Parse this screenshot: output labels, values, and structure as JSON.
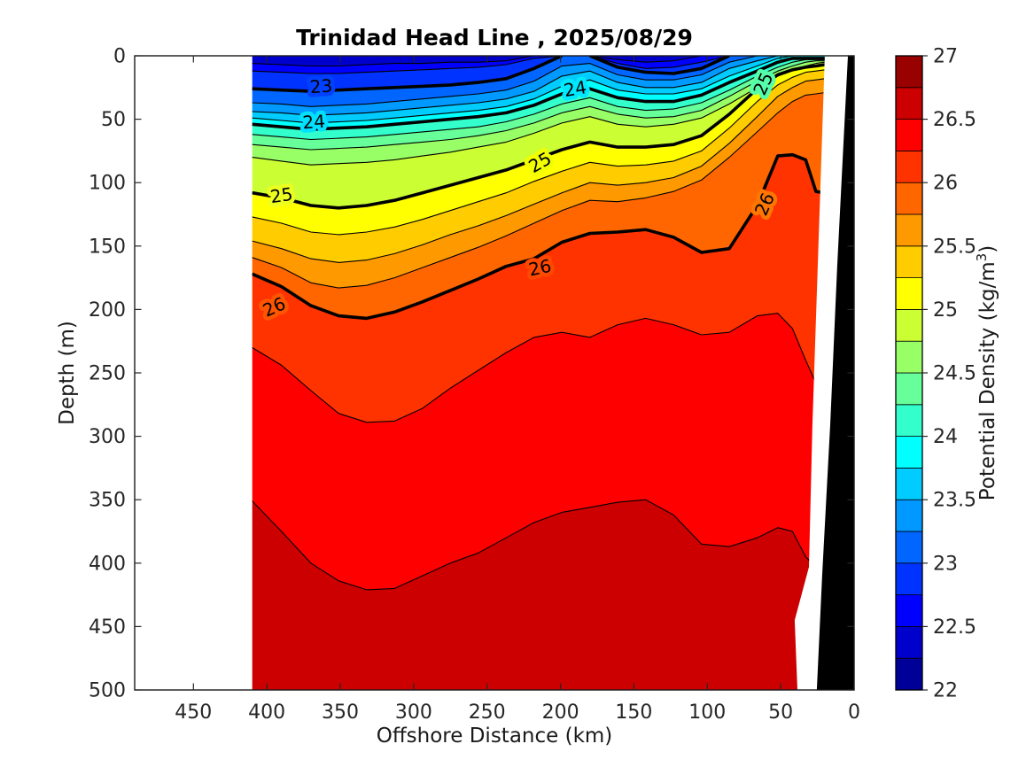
{
  "chart_data": {
    "type": "filled_contour_section",
    "title": "Trinidad Head Line , 2025/08/29",
    "x_axis": {
      "label": "Offshore Distance (km)",
      "ticks": [
        450,
        400,
        350,
        300,
        250,
        200,
        150,
        100,
        50,
        0
      ],
      "range_km": [
        490,
        0
      ],
      "direction": "reversed"
    },
    "y_axis": {
      "label": "Depth (m)",
      "ticks": [
        0,
        50,
        100,
        150,
        200,
        250,
        300,
        350,
        400,
        450,
        500
      ],
      "range_m": [
        0,
        500
      ]
    },
    "colorbar": {
      "title_parts": {
        "prefix": "Potential Density (kg/m",
        "sup": "3",
        "suffix": ")"
      },
      "min": 22,
      "max": 27,
      "block_step": 0.25,
      "ticks": [
        22,
        22.5,
        23,
        23.5,
        24,
        24.5,
        25,
        25.5,
        26,
        26.5,
        27
      ],
      "colors_bottom_to_top": [
        "#000099",
        "#0000CC",
        "#0000FF",
        "#0033FF",
        "#0066FF",
        "#0099FF",
        "#00CCFF",
        "#00FFFF",
        "#33FFCC",
        "#66FF99",
        "#99FF66",
        "#CCFF33",
        "#FFFF00",
        "#FFCC00",
        "#FF9900",
        "#FF6600",
        "#FF3300",
        "#FF0000",
        "#CC0000",
        "#990000"
      ]
    },
    "section": {
      "distance_km": [
        410,
        390,
        370,
        351,
        332,
        313,
        294,
        275,
        256,
        237,
        218,
        199,
        180,
        161,
        142,
        123,
        104,
        85,
        66,
        52,
        42,
        33,
        26,
        20
      ],
      "surface_band_color": "#0000CC",
      "band_colors": [
        "#0000CC",
        "#0000FF",
        "#0033FF",
        "#0066FF",
        "#0099FF",
        "#00CCFF",
        "#00FFFF",
        "#33FFCC",
        "#66FF99",
        "#99FF66",
        "#CCFF33",
        "#FFFF00",
        "#FFCC00",
        "#FF9900",
        "#FF6600",
        "#FF3300",
        "#FF0000",
        "#CC0000"
      ],
      "contours": [
        {
          "level": 22.5,
          "thick": false,
          "depth_m": [
            6,
            7,
            8,
            8,
            7,
            6,
            6,
            5,
            5,
            4,
            0,
            0,
            0,
            3,
            5,
            4,
            0,
            0,
            0,
            0,
            0,
            0,
            0,
            0
          ]
        },
        {
          "level": 22.75,
          "thick": false,
          "depth_m": [
            12,
            13,
            14,
            14,
            13,
            12,
            11,
            10,
            9,
            7,
            2,
            0,
            0,
            6,
            10,
            9,
            5,
            0,
            0,
            0,
            0,
            0,
            0,
            0
          ]
        },
        {
          "level": 23,
          "thick": true,
          "depth_m": [
            26,
            27,
            28,
            27,
            26,
            25,
            24,
            23,
            21,
            18,
            10,
            0,
            0,
            9,
            13,
            14,
            10,
            0,
            0,
            0,
            0,
            0,
            0,
            0
          ]
        },
        {
          "level": 23.25,
          "thick": false,
          "depth_m": [
            37,
            38,
            40,
            39,
            38,
            36,
            34,
            32,
            30,
            27,
            20,
            8,
            6,
            15,
            19,
            19,
            15,
            5,
            0,
            0,
            0,
            0,
            0,
            0
          ]
        },
        {
          "level": 23.5,
          "thick": false,
          "depth_m": [
            44,
            45,
            47,
            46,
            45,
            43,
            41,
            39,
            37,
            34,
            28,
            16,
            12,
            21,
            25,
            25,
            21,
            10,
            4,
            0,
            0,
            0,
            0,
            0
          ]
        },
        {
          "level": 23.75,
          "thick": false,
          "depth_m": [
            49,
            51,
            53,
            52,
            51,
            49,
            47,
            45,
            43,
            40,
            34,
            24,
            19,
            27,
            30,
            30,
            26,
            16,
            8,
            2,
            0,
            0,
            0,
            0
          ]
        },
        {
          "level": 24,
          "thick": true,
          "depth_m": [
            54,
            56,
            58,
            57,
            56,
            54,
            52,
            50,
            48,
            45,
            39,
            30,
            26,
            33,
            36,
            36,
            31,
            21,
            12,
            5,
            2,
            2,
            2,
            2
          ]
        },
        {
          "level": 24.25,
          "thick": false,
          "depth_m": [
            62,
            64,
            66,
            65,
            64,
            62,
            60,
            58,
            56,
            52,
            46,
            38,
            33,
            40,
            43,
            42,
            37,
            27,
            16,
            9,
            5,
            3,
            3,
            3
          ]
        },
        {
          "level": 24.5,
          "thick": false,
          "depth_m": [
            70,
            72,
            74,
            73,
            72,
            70,
            68,
            66,
            63,
            59,
            53,
            45,
            40,
            46,
            49,
            48,
            43,
            32,
            20,
            12,
            8,
            5,
            4,
            4
          ]
        },
        {
          "level": 24.75,
          "thick": false,
          "depth_m": [
            80,
            83,
            86,
            85,
            84,
            82,
            79,
            76,
            72,
            68,
            61,
            53,
            48,
            54,
            56,
            54,
            49,
            38,
            25,
            16,
            11,
            8,
            6,
            5
          ]
        },
        {
          "level": 25,
          "thick": true,
          "depth_m": [
            108,
            112,
            118,
            120,
            118,
            114,
            108,
            102,
            96,
            90,
            82,
            74,
            68,
            72,
            72,
            70,
            63,
            46,
            26,
            15,
            11,
            9,
            8,
            7
          ]
        },
        {
          "level": 25.25,
          "thick": false,
          "depth_m": [
            127,
            132,
            139,
            141,
            139,
            135,
            129,
            122,
            115,
            108,
            99,
            91,
            84,
            87,
            86,
            83,
            75,
            57,
            36,
            23,
            17,
            13,
            12,
            11
          ]
        },
        {
          "level": 25.5,
          "thick": false,
          "depth_m": [
            146,
            152,
            160,
            163,
            161,
            156,
            149,
            141,
            134,
            126,
            117,
            108,
            100,
            102,
            100,
            96,
            87,
            69,
            48,
            32,
            25,
            20,
            19,
            18
          ]
        },
        {
          "level": 25.75,
          "thick": false,
          "depth_m": [
            159,
            167,
            179,
            183,
            181,
            175,
            167,
            159,
            151,
            142,
            132,
            122,
            114,
            115,
            112,
            107,
            98,
            80,
            60,
            45,
            36,
            31,
            30,
            29
          ]
        },
        {
          "level": 26,
          "thick": true,
          "depth_m": [
            172,
            182,
            197,
            205,
            207,
            202,
            194,
            185,
            176,
            166,
            160,
            147,
            140,
            139,
            137,
            143,
            155,
            152,
            118,
            79,
            78,
            82,
            107,
            108
          ]
        },
        {
          "level": 26.25,
          "thick": false,
          "depth_m": [
            230,
            244,
            264,
            282,
            289,
            288,
            278,
            262,
            248,
            234,
            222,
            218,
            222,
            212,
            207,
            212,
            220,
            218,
            205,
            203,
            215,
            240,
            258,
            260
          ]
        },
        {
          "level": 26.5,
          "thick": false,
          "depth_m": [
            351,
            375,
            400,
            414,
            421,
            420,
            410,
            400,
            392,
            380,
            368,
            360,
            356,
            352,
            350,
            362,
            385,
            387,
            380,
            372,
            375,
            395,
            403,
            405
          ]
        }
      ],
      "contour_labels": [
        {
          "text": "23",
          "distance_km": 363,
          "depth_m": 24,
          "rotation_deg": -4,
          "halo": "#0040FF"
        },
        {
          "text": "24",
          "distance_km": 368,
          "depth_m": 52,
          "rotation_deg": -4,
          "halo": "#00E0FF"
        },
        {
          "text": "24",
          "distance_km": 190,
          "depth_m": 26,
          "rotation_deg": -10,
          "halo": "#00E8FF"
        },
        {
          "text": "25",
          "distance_km": 390,
          "depth_m": 110,
          "rotation_deg": -8,
          "halo": "#ECFF20"
        },
        {
          "text": "25",
          "distance_km": 214,
          "depth_m": 84,
          "rotation_deg": -30,
          "halo": "#F2FF00"
        },
        {
          "text": "25",
          "distance_km": 62,
          "depth_m": 22,
          "rotation_deg": -66,
          "halo": "#55FFAA"
        },
        {
          "text": "26",
          "distance_km": 395,
          "depth_m": 198,
          "rotation_deg": -24,
          "halo": "#FF5500"
        },
        {
          "text": "26",
          "distance_km": 214,
          "depth_m": 167,
          "rotation_deg": -12,
          "halo": "#FF4800"
        },
        {
          "text": "26",
          "distance_km": 61,
          "depth_m": 117,
          "rotation_deg": -66,
          "halo": "#FF7700"
        }
      ],
      "data_edge_km_m": [
        [
          410,
          0
        ],
        [
          20,
          0
        ],
        [
          28.4,
          291
        ],
        [
          30.8,
          403
        ],
        [
          40.5,
          445
        ],
        [
          38.6,
          500
        ],
        [
          410,
          500
        ]
      ],
      "coast_wedge_km_m": [
        [
          4.2,
          0
        ],
        [
          0,
          0
        ],
        [
          0,
          500
        ],
        [
          25.4,
          500
        ],
        [
          21.8,
          410
        ],
        [
          16.3,
          291
        ],
        [
          11.5,
          166
        ],
        [
          4.2,
          0
        ]
      ],
      "coast_wedge_color": "#000000"
    }
  }
}
